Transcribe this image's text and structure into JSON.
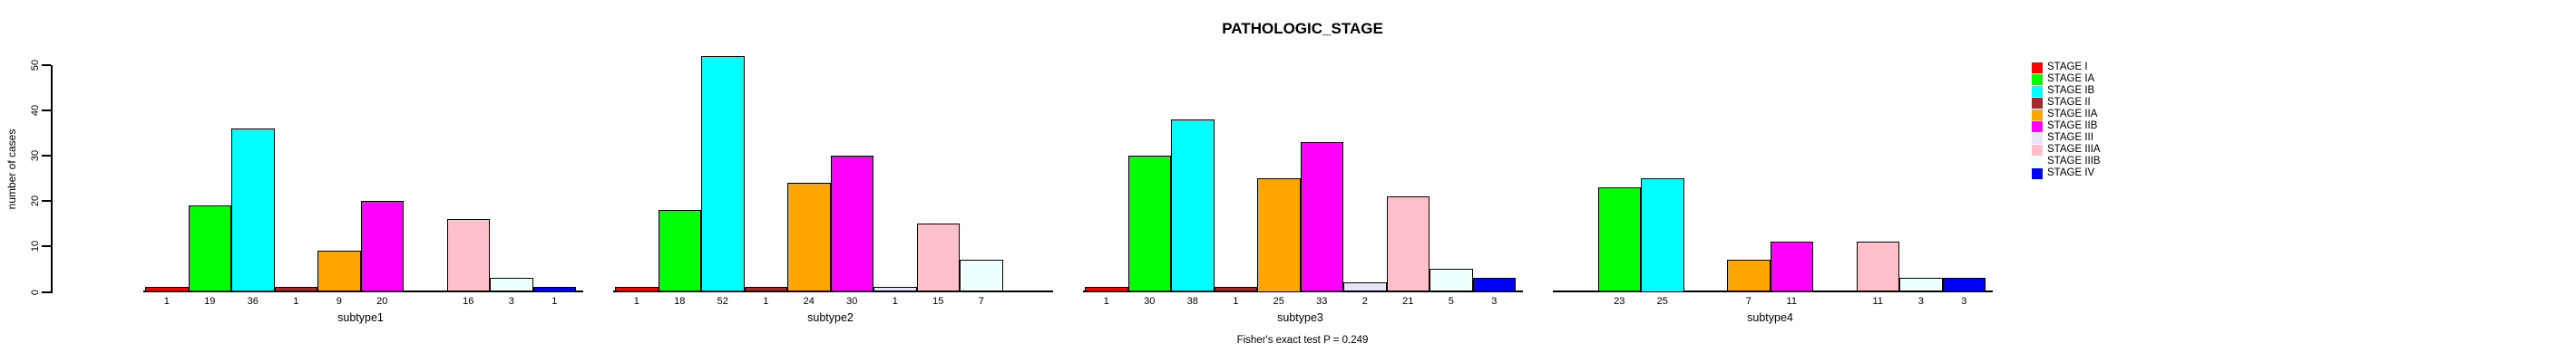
{
  "chart_data": {
    "type": "bar",
    "title": "PATHOLOGIC_STAGE",
    "ylabel": "number of cases",
    "footer": "Fisher's exact test P = 0.249",
    "ylim": [
      0,
      50
    ],
    "yticks": [
      0,
      10,
      20,
      30,
      40,
      50
    ],
    "grid": false,
    "legend_position": "right",
    "stages": [
      {
        "label": "STAGE I",
        "color": "#FF0000"
      },
      {
        "label": "STAGE IA",
        "color": "#00FF00"
      },
      {
        "label": "STAGE IB",
        "color": "#00FFFF"
      },
      {
        "label": "STAGE II",
        "color": "#A52A2A"
      },
      {
        "label": "STAGE IIA",
        "color": "#FFA500"
      },
      {
        "label": "STAGE IIB",
        "color": "#FF00FF"
      },
      {
        "label": "STAGE III",
        "color": "#E6E6FA"
      },
      {
        "label": "STAGE IIIA",
        "color": "#FFC0CB"
      },
      {
        "label": "STAGE IIIB",
        "color": "#F0FFFF"
      },
      {
        "label": "STAGE IV",
        "color": "#0000FF"
      }
    ],
    "groups": [
      {
        "label": "subtype1",
        "values": [
          1,
          19,
          36,
          1,
          9,
          20,
          0,
          16,
          3,
          1
        ]
      },
      {
        "label": "subtype2",
        "values": [
          1,
          18,
          52,
          1,
          24,
          30,
          1,
          15,
          7,
          0
        ]
      },
      {
        "label": "subtype3",
        "values": [
          1,
          30,
          38,
          1,
          25,
          33,
          2,
          21,
          5,
          3
        ]
      },
      {
        "label": "subtype4",
        "values": [
          0,
          23,
          25,
          0,
          7,
          11,
          0,
          11,
          3,
          3
        ]
      }
    ]
  }
}
